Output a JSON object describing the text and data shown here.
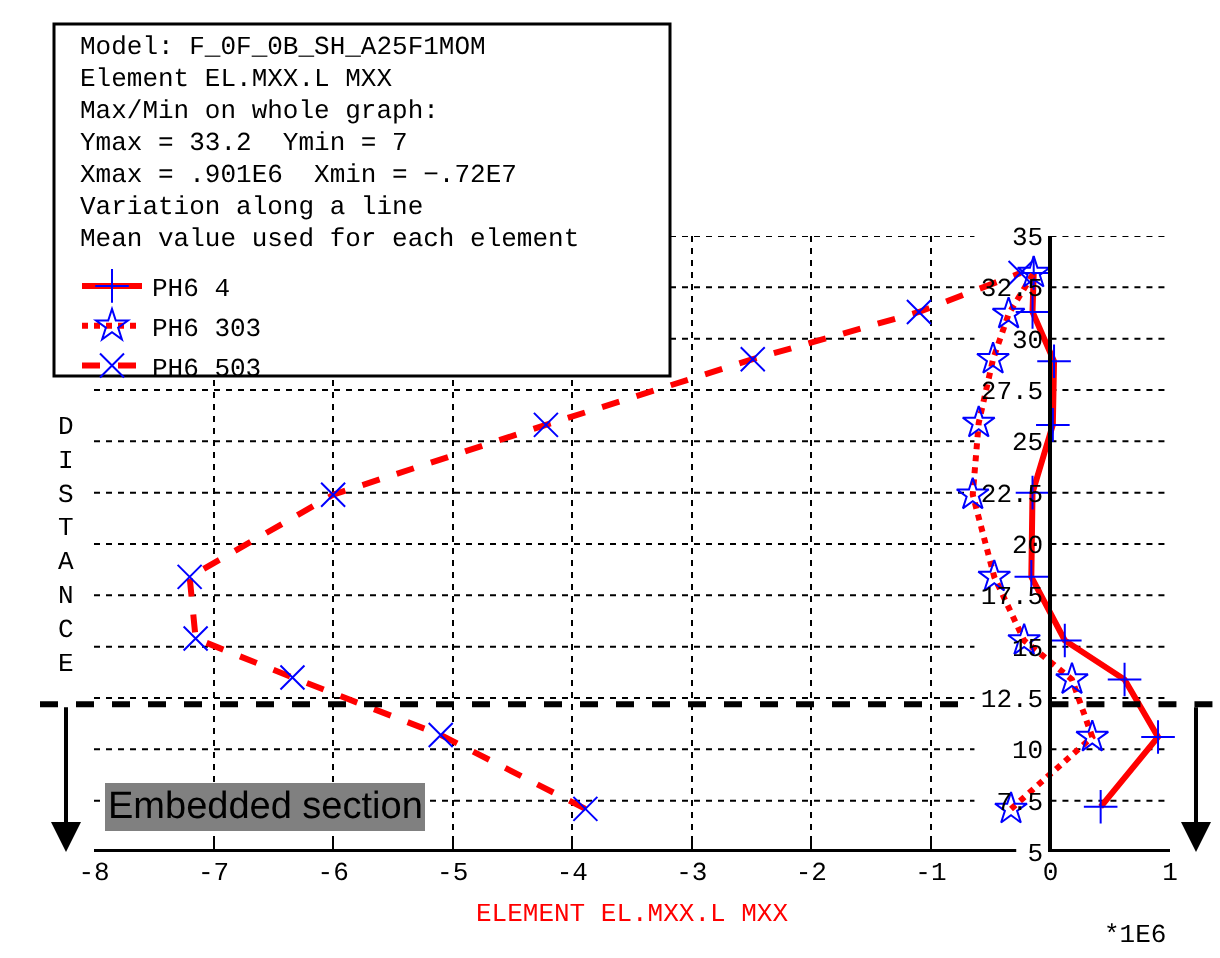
{
  "chart_data": {
    "type": "line",
    "xlabel": "ELEMENT EL.MXX.L MXX",
    "ylabel": "DISTANCE",
    "title": "Model: F_0F_0B_SH_A25F1MOM",
    "subtitle": "Element EL.MXX.L MXX",
    "annotations": [
      "Max/Min on whole graph:",
      "Ymax = 33.2  Ymin = 7",
      "Xmax = .901E6  Xmin = −.72E7",
      "Variation along a line",
      "Mean value used for each element",
      "Embedded section",
      "*1E6"
    ],
    "xlim": [
      -8,
      1
    ],
    "xticks": [
      -8,
      -7,
      -6,
      -5,
      -4,
      -3,
      -2,
      -1,
      0,
      1
    ],
    "ylim": [
      5,
      35
    ],
    "yticks": [
      5,
      7.5,
      10,
      12.5,
      15,
      17.5,
      20,
      22.5,
      25,
      27.5,
      30,
      32.5,
      35
    ],
    "grid": true,
    "legend": "top left",
    "series": [
      {
        "name": "PH6 4",
        "color": "#ff0000",
        "marker": "cross",
        "line_style": "solid",
        "x": [
          0.42,
          0.9,
          0.62,
          0.12,
          -0.16,
          -0.15,
          0.02,
          0.03,
          -0.15,
          -0.14
        ],
        "values": [
          7.2,
          10.6,
          13.4,
          15.3,
          18.4,
          22.5,
          25.8,
          28.9,
          31.3,
          33.2
        ],
        "colors": [
          "#0000ff",
          "#0000ff",
          "#0000ff",
          "#0000ff",
          "#0000ff",
          "#0000ff",
          "#0000ff",
          "#0000ff",
          "#0000ff",
          "#0000ff"
        ]
      },
      {
        "name": "PH6 303",
        "color": "#ff0000",
        "marker": "star",
        "line_style": "dotted",
        "x": [
          -0.33,
          0.35,
          0.18,
          -0.22,
          -0.47,
          -0.65,
          -0.6,
          -0.48,
          -0.35,
          -0.14
        ],
        "values": [
          7.1,
          10.6,
          13.4,
          15.3,
          18.4,
          22.4,
          25.9,
          29.0,
          31.2,
          33.2
        ],
        "colors": [
          "#0000ff",
          "#0000ff",
          "#0000ff",
          "#0000ff",
          "#0000ff",
          "#0000ff",
          "#0000ff",
          "#0000ff",
          "#0000ff",
          "#0000ff"
        ]
      },
      {
        "name": "PH6 503",
        "color": "#ff0000",
        "marker": "x",
        "line_style": "dashed",
        "x": [
          -3.89,
          -5.1,
          -6.34,
          -7.15,
          -7.2,
          -6.0,
          -4.22,
          -2.49,
          -1.1,
          -0.25
        ],
        "values": [
          7.1,
          10.7,
          13.5,
          15.4,
          18.4,
          22.4,
          25.8,
          29.0,
          31.3,
          33.2
        ],
        "colors": [
          "#0000ff",
          "#0000ff",
          "#0000ff",
          "#0000ff",
          "#0000ff",
          "#0000ff",
          "#0000ff",
          "#0000ff",
          "#0000ff",
          "#0000ff"
        ]
      }
    ],
    "ref_lines": [
      {
        "axis": "y",
        "value": 12.2,
        "color": "#000000",
        "line_style": "dashed"
      }
    ]
  }
}
